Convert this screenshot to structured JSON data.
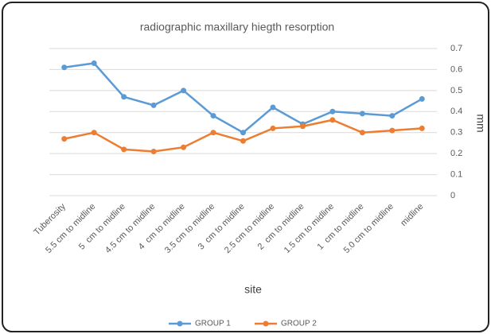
{
  "chart_data": {
    "type": "line",
    "title": "radiographic maxillary hiegth resorption",
    "x_label": "site",
    "y_label": "mm",
    "categories": [
      "Tuberosity",
      "5.5 cm to midline",
      "5  cm to midline",
      "4.5 cm to midline",
      "4  cm to midline",
      "3.5 cm to midline",
      "3  cm to midline",
      "2.5 cm to midline",
      "2  cm to midline",
      "1.5 cm to midline",
      "1  cm to midline",
      "5.0 cm to midline",
      "midline"
    ],
    "series": [
      {
        "name": "GROUP 1",
        "color": "#5b9bd5",
        "values": [
          0.61,
          0.63,
          0.47,
          0.43,
          0.5,
          0.38,
          0.3,
          0.42,
          0.34,
          0.4,
          0.39,
          0.38,
          0.46
        ]
      },
      {
        "name": "GROUP 2",
        "color": "#ed7d31",
        "values": [
          0.27,
          0.3,
          0.22,
          0.21,
          0.23,
          0.3,
          0.26,
          0.32,
          0.33,
          0.36,
          0.3,
          0.31,
          0.32
        ]
      }
    ],
    "ylim": [
      0,
      0.7
    ],
    "yticks": [
      0,
      0.1,
      0.2,
      0.3,
      0.4,
      0.5,
      0.6,
      0.7
    ],
    "grid": true,
    "legend": "bottom"
  }
}
